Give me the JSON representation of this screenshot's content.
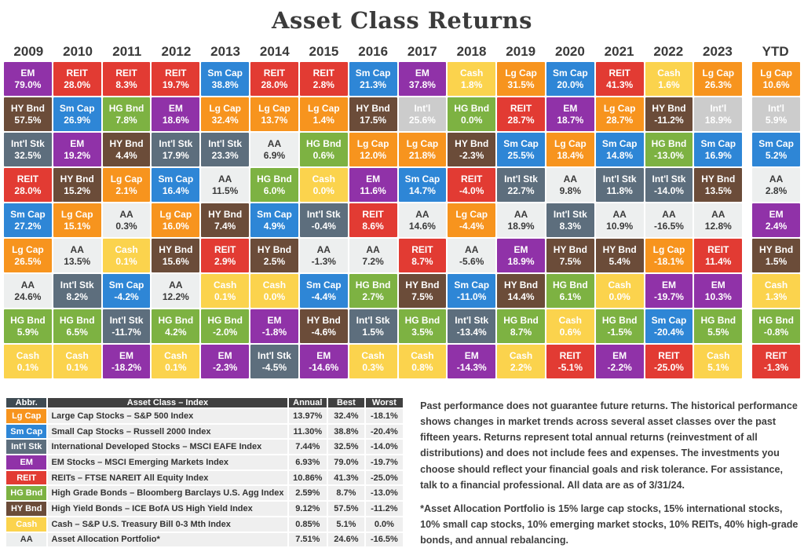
{
  "title": "Asset Class Returns",
  "colors": {
    "Lg Cap": {
      "bg": "#F7941E",
      "fg": "#FFFFFF"
    },
    "Sm Cap": {
      "bg": "#2E86D6",
      "fg": "#FFFFFF"
    },
    "Int'l Stk": {
      "bg": "#5D6E7D",
      "fg": "#FFFFFF"
    },
    "EM": {
      "bg": "#9032A8",
      "fg": "#FFFFFF"
    },
    "REIT": {
      "bg": "#E23B33",
      "fg": "#FFFFFF"
    },
    "HG Bnd": {
      "bg": "#7DB242",
      "fg": "#FFFFFF"
    },
    "HY Bnd": {
      "bg": "#6B4C39",
      "fg": "#FFFFFF"
    },
    "Cash": {
      "bg": "#FBD34D",
      "fg": "#FFFFFF"
    },
    "AA": {
      "bg": "#EDEFEF",
      "fg": "#3A3A3A"
    }
  },
  "chart_data": {
    "type": "heatmap",
    "title": "Asset Class Returns",
    "description": "Periodic-table style quilt of annual asset class returns, ranked best to worst within each year",
    "columns": [
      "2009",
      "2010",
      "2011",
      "2012",
      "2013",
      "2014",
      "2015",
      "2016",
      "2017",
      "2018",
      "2019",
      "2020",
      "2021",
      "2022",
      "2023",
      "YTD"
    ],
    "grid": [
      {
        "year": "2009",
        "cells": [
          [
            "EM",
            "79.0%"
          ],
          [
            "HY Bnd",
            "57.5%"
          ],
          [
            "Int'l Stk",
            "32.5%"
          ],
          [
            "REIT",
            "28.0%"
          ],
          [
            "Sm Cap",
            "27.2%"
          ],
          [
            "Lg Cap",
            "26.5%"
          ],
          [
            "AA",
            "24.6%"
          ],
          [
            "HG Bnd",
            "5.9%"
          ],
          [
            "Cash",
            "0.1%"
          ]
        ]
      },
      {
        "year": "2010",
        "cells": [
          [
            "REIT",
            "28.0%"
          ],
          [
            "Sm Cap",
            "26.9%"
          ],
          [
            "EM",
            "19.2%"
          ],
          [
            "HY Bnd",
            "15.2%"
          ],
          [
            "Lg Cap",
            "15.1%"
          ],
          [
            "AA",
            "13.5%"
          ],
          [
            "Int'l Stk",
            "8.2%"
          ],
          [
            "HG Bnd",
            "6.5%"
          ],
          [
            "Cash",
            "0.1%"
          ]
        ]
      },
      {
        "year": "2011",
        "cells": [
          [
            "REIT",
            "8.3%"
          ],
          [
            "HG Bnd",
            "7.8%"
          ],
          [
            "HY Bnd",
            "4.4%"
          ],
          [
            "Lg Cap",
            "2.1%"
          ],
          [
            "AA",
            "0.3%"
          ],
          [
            "Cash",
            "0.1%"
          ],
          [
            "Sm Cap",
            "-4.2%"
          ],
          [
            "Int'l Stk",
            "-11.7%"
          ],
          [
            "EM",
            "-18.2%"
          ]
        ]
      },
      {
        "year": "2012",
        "cells": [
          [
            "REIT",
            "19.7%"
          ],
          [
            "EM",
            "18.6%"
          ],
          [
            "Int'l Stk",
            "17.9%"
          ],
          [
            "Sm Cap",
            "16.4%"
          ],
          [
            "Lg Cap",
            "16.0%"
          ],
          [
            "HY Bnd",
            "15.6%"
          ],
          [
            "AA",
            "12.2%"
          ],
          [
            "HG Bnd",
            "4.2%"
          ],
          [
            "Cash",
            "0.1%"
          ]
        ]
      },
      {
        "year": "2013",
        "cells": [
          [
            "Sm Cap",
            "38.8%"
          ],
          [
            "Lg Cap",
            "32.4%"
          ],
          [
            "Int'l Stk",
            "23.3%"
          ],
          [
            "AA",
            "11.5%"
          ],
          [
            "HY Bnd",
            "7.4%"
          ],
          [
            "REIT",
            "2.9%"
          ],
          [
            "Cash",
            "0.1%"
          ],
          [
            "HG Bnd",
            "-2.0%"
          ],
          [
            "EM",
            "-2.3%"
          ]
        ]
      },
      {
        "year": "2014",
        "cells": [
          [
            "REIT",
            "28.0%"
          ],
          [
            "Lg Cap",
            "13.7%"
          ],
          [
            "AA",
            "6.9%"
          ],
          [
            "HG Bnd",
            "6.0%"
          ],
          [
            "Sm Cap",
            "4.9%"
          ],
          [
            "HY Bnd",
            "2.5%"
          ],
          [
            "Cash",
            "0.0%"
          ],
          [
            "EM",
            "-1.8%"
          ],
          [
            "Int'l Stk",
            "-4.5%"
          ]
        ]
      },
      {
        "year": "2015",
        "cells": [
          [
            "REIT",
            "2.8%"
          ],
          [
            "Lg Cap",
            "1.4%"
          ],
          [
            "HG Bnd",
            "0.6%"
          ],
          [
            "Cash",
            "0.0%"
          ],
          [
            "Int'l Stk",
            "-0.4%"
          ],
          [
            "AA",
            "-1.3%"
          ],
          [
            "Sm Cap",
            "-4.4%"
          ],
          [
            "HY Bnd",
            "-4.6%"
          ],
          [
            "EM",
            "-14.6%"
          ]
        ]
      },
      {
        "year": "2016",
        "cells": [
          [
            "Sm Cap",
            "21.3%"
          ],
          [
            "HY Bnd",
            "17.5%"
          ],
          [
            "Lg Cap",
            "12.0%"
          ],
          [
            "EM",
            "11.6%"
          ],
          [
            "REIT",
            "8.6%"
          ],
          [
            "AA",
            "7.2%"
          ],
          [
            "HG Bnd",
            "2.7%"
          ],
          [
            "Int'l Stk",
            "1.5%"
          ],
          [
            "Cash",
            "0.3%"
          ]
        ]
      },
      {
        "year": "2017",
        "cells": [
          [
            "EM",
            "37.8%"
          ],
          [
            "Int'l",
            "25.6%"
          ],
          [
            "Lg Cap",
            "21.8%"
          ],
          [
            "Sm Cap",
            "14.7%"
          ],
          [
            "AA",
            "14.6%"
          ],
          [
            "REIT",
            "8.7%"
          ],
          [
            "HY Bnd",
            "7.5%"
          ],
          [
            "HG Bnd",
            "3.5%"
          ],
          [
            "Cash",
            "0.8%"
          ]
        ]
      },
      {
        "year": "2018",
        "cells": [
          [
            "Cash",
            "1.8%"
          ],
          [
            "HG Bnd",
            "0.0%"
          ],
          [
            "HY Bnd",
            "-2.3%"
          ],
          [
            "REIT",
            "-4.0%"
          ],
          [
            "Lg Cap",
            "-4.4%"
          ],
          [
            "AA",
            "-5.6%"
          ],
          [
            "Sm Cap",
            "-11.0%"
          ],
          [
            "Int'l Stk",
            "-13.4%"
          ],
          [
            "EM",
            "-14.3%"
          ]
        ]
      },
      {
        "year": "2019",
        "cells": [
          [
            "Lg Cap",
            "31.5%"
          ],
          [
            "REIT",
            "28.7%"
          ],
          [
            "Sm Cap",
            "25.5%"
          ],
          [
            "Int'l Stk",
            "22.7%"
          ],
          [
            "AA",
            "18.9%"
          ],
          [
            "EM",
            "18.9%"
          ],
          [
            "HY Bnd",
            "14.4%"
          ],
          [
            "HG Bnd",
            "8.7%"
          ],
          [
            "Cash",
            "2.2%"
          ]
        ]
      },
      {
        "year": "2020",
        "cells": [
          [
            "Sm Cap",
            "20.0%"
          ],
          [
            "EM",
            "18.7%"
          ],
          [
            "Lg Cap",
            "18.4%"
          ],
          [
            "AA",
            "9.8%"
          ],
          [
            "Int'l Stk",
            "8.3%"
          ],
          [
            "HY Bnd",
            "7.5%"
          ],
          [
            "HG Bnd",
            "6.1%"
          ],
          [
            "Cash",
            "0.6%"
          ],
          [
            "REIT",
            "-5.1%"
          ]
        ]
      },
      {
        "year": "2021",
        "cells": [
          [
            "REIT",
            "41.3%"
          ],
          [
            "Lg Cap",
            "28.7%"
          ],
          [
            "Sm Cap",
            "14.8%"
          ],
          [
            "Int'l Stk",
            "11.8%"
          ],
          [
            "AA",
            "10.9%"
          ],
          [
            "HY Bnd",
            "5.4%"
          ],
          [
            "Cash",
            "0.0%"
          ],
          [
            "HG Bnd",
            "-1.5%"
          ],
          [
            "EM",
            "-2.2%"
          ]
        ]
      },
      {
        "year": "2022",
        "cells": [
          [
            "Cash",
            "1.6%"
          ],
          [
            "HY Bnd",
            "-11.2%"
          ],
          [
            "HG Bnd",
            "-13.0%"
          ],
          [
            "Int'l Stk",
            "-14.0%"
          ],
          [
            "AA",
            "-16.5%"
          ],
          [
            "Lg Cap",
            "-18.1%"
          ],
          [
            "EM",
            "-19.7%"
          ],
          [
            "Sm Cap",
            "-20.4%"
          ],
          [
            "REIT",
            "-25.0%"
          ]
        ]
      },
      {
        "year": "2023",
        "cells": [
          [
            "Lg Cap",
            "26.3%"
          ],
          [
            "Int'l",
            "18.9%"
          ],
          [
            "Sm Cap",
            "16.9%"
          ],
          [
            "HY Bnd",
            "13.5%"
          ],
          [
            "AA",
            "12.8%"
          ],
          [
            "REIT",
            "11.4%"
          ],
          [
            "EM",
            "10.3%"
          ],
          [
            "HG Bnd",
            "5.5%"
          ],
          [
            "Cash",
            "5.1%"
          ]
        ]
      },
      {
        "year": "YTD",
        "cells": [
          [
            "Lg Cap",
            "10.6%"
          ],
          [
            "Int'l",
            "5.9%"
          ],
          [
            "Sm Cap",
            "5.2%"
          ],
          [
            "AA",
            "2.8%"
          ],
          [
            "EM",
            "2.4%"
          ],
          [
            "HY Bnd",
            "1.5%"
          ],
          [
            "Cash",
            "1.3%"
          ],
          [
            "HG Bnd",
            "-0.8%"
          ],
          [
            "REIT",
            "-1.3%"
          ]
        ]
      }
    ],
    "legend_table": {
      "headers": [
        "Abbr.",
        "Asset Class – Index",
        "Annual",
        "Best",
        "Worst"
      ],
      "rows": [
        {
          "abbr": "Lg Cap",
          "name": "Large Cap Stocks – S&P 500 Index",
          "annual": "13.97%",
          "best": "32.4%",
          "worst": "-18.1%"
        },
        {
          "abbr": "Sm Cap",
          "name": "Small Cap Stocks – Russell 2000 Index",
          "annual": "11.30%",
          "best": "38.8%",
          "worst": "-20.4%"
        },
        {
          "abbr": "Int'l Stk",
          "name": "International Developed Stocks – MSCI EAFE Index",
          "annual": "7.44%",
          "best": "32.5%",
          "worst": "-14.0%"
        },
        {
          "abbr": "EM",
          "name": "EM Stocks – MSCI Emerging Markets Index",
          "annual": "6.93%",
          "best": "79.0%",
          "worst": "-19.7%"
        },
        {
          "abbr": "REIT",
          "name": "REITs – FTSE NAREIT All Equity Index",
          "annual": "10.86%",
          "best": "41.3%",
          "worst": "-25.0%"
        },
        {
          "abbr": "HG Bnd",
          "name": "High Grade Bonds – Bloomberg Barclays U.S. Agg Index",
          "annual": "2.59%",
          "best": "8.7%",
          "worst": "-13.0%"
        },
        {
          "abbr": "HY Bnd",
          "name": "High Yield Bonds – ICE BofA US High Yield Index",
          "annual": "9.12%",
          "best": "57.5%",
          "worst": "-11.2%"
        },
        {
          "abbr": "Cash",
          "name": "Cash – S&P U.S. Treasury Bill 0-3 Mth Index",
          "annual": "0.85%",
          "best": "5.1%",
          "worst": "0.0%"
        },
        {
          "abbr": "AA",
          "name": "Asset Allocation Portfolio*",
          "annual": "7.51%",
          "best": "24.6%",
          "worst": "-16.5%"
        }
      ]
    }
  },
  "notes": {
    "p1": "Past performance does not guarantee future returns. The historical performance shows changes in market trends across several asset classes over the past fifteen years. Returns represent total annual returns (reinvestment of all distributions) and does not include fees and expenses. The investments you choose should reflect your financial goals and risk tolerance. For assistance, talk to a financial professional. All data are as of 3/31/24.",
    "p2": "*Asset Allocation Portfolio is 15% large cap stocks, 15% international stocks, 10% small cap stocks, 10% emerging market stocks, 10% REITs, 40% high-grade bonds, and annual rebalancing."
  }
}
